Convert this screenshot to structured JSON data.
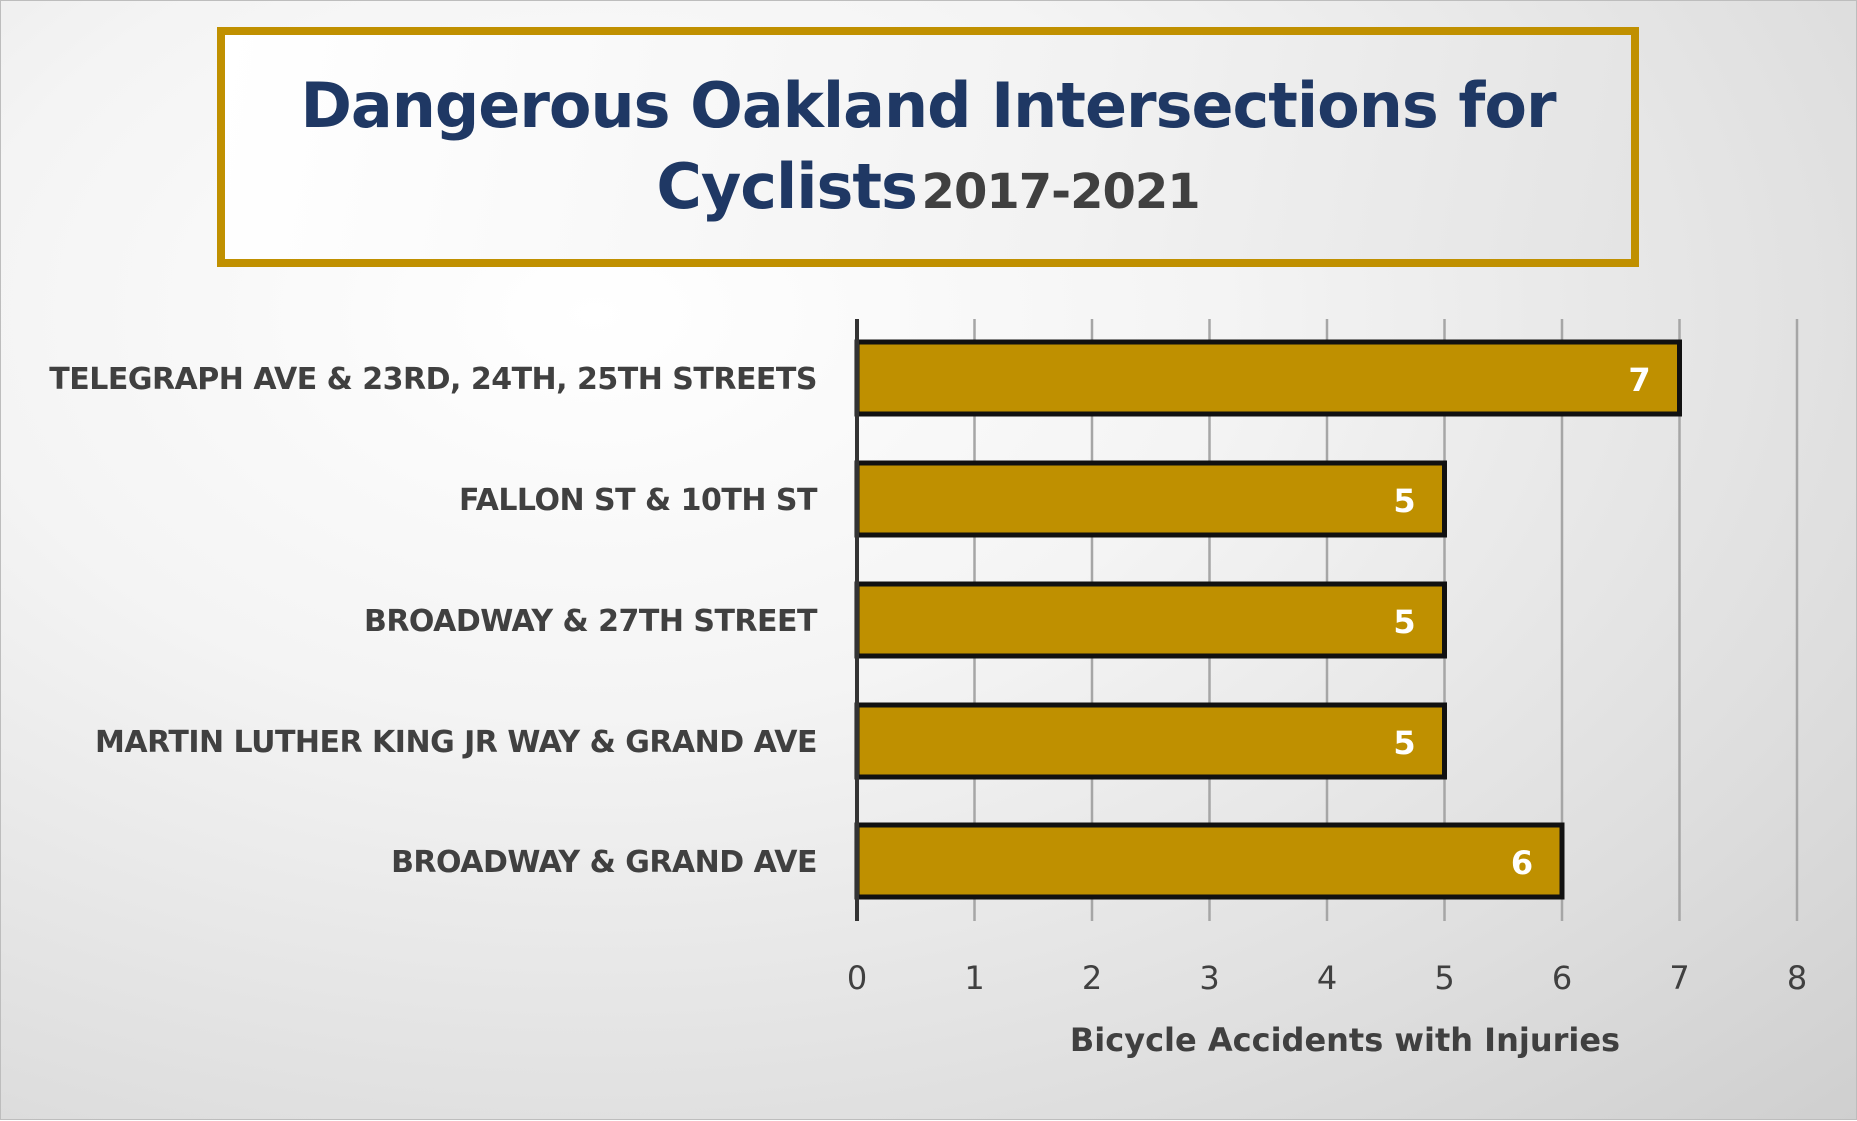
{
  "title": {
    "main": "Dangerous Oakland Intersections for Cyclists",
    "sub": "2017-2021"
  },
  "chart_data": {
    "type": "bar",
    "orientation": "horizontal",
    "categories": [
      "TELEGRAPH AVE & 23RD, 24TH, 25TH STREETS",
      "FALLON ST & 10TH ST",
      "BROADWAY & 27TH STREET",
      "MARTIN LUTHER KING JR WAY & GRAND AVE",
      "BROADWAY & GRAND AVE"
    ],
    "values": [
      7,
      5,
      5,
      5,
      6
    ],
    "xlabel": "Bicycle Accidents with Injuries",
    "ylabel": "",
    "xlim": [
      0,
      8
    ],
    "xticks": [
      0,
      1,
      2,
      3,
      4,
      5,
      6,
      7,
      8
    ],
    "grid": "vertical",
    "data_labels": true,
    "colors": {
      "bar_fill": "#bf9000",
      "bar_stroke": "#111111",
      "data_label": "#ffffff",
      "title_main": "#1f3864",
      "title_sub": "#404040",
      "title_border": "#c09000",
      "axis_text": "#404040",
      "gridline": "#a6a6a6"
    }
  }
}
